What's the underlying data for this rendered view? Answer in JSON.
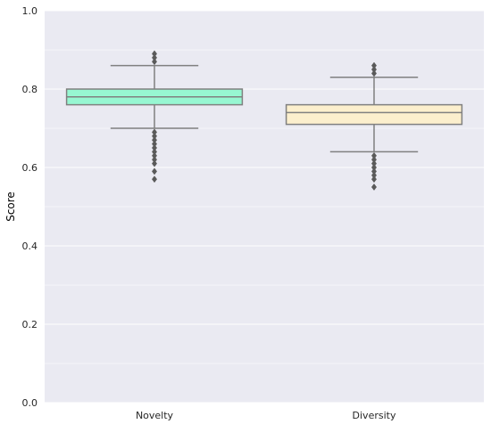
{
  "chart_data": {
    "type": "box",
    "ylabel": "Score",
    "xlabel": "",
    "title": "",
    "ylim": [
      0,
      1.0
    ],
    "yticks": [
      0.0,
      0.2,
      0.4,
      0.6,
      0.8,
      1.0
    ],
    "ytick_labels": [
      "0.0",
      "0.2",
      "0.4",
      "0.6",
      "0.8",
      "1.0"
    ],
    "categories": [
      "Novelty",
      "Diversity"
    ],
    "grid": true,
    "background": "#eaeaf2",
    "grid_color": "#ffffff",
    "box_edge_color": "#808080",
    "series": [
      {
        "category": "Novelty",
        "color": "#97f7d2",
        "q1": 0.76,
        "median": 0.78,
        "q3": 0.8,
        "whisker_low": 0.7,
        "whisker_high": 0.86,
        "outliers": [
          0.57,
          0.59,
          0.61,
          0.62,
          0.63,
          0.64,
          0.65,
          0.66,
          0.67,
          0.68,
          0.69,
          0.87,
          0.88,
          0.89
        ]
      },
      {
        "category": "Diversity",
        "color": "#fcefcd",
        "q1": 0.71,
        "median": 0.74,
        "q3": 0.76,
        "whisker_low": 0.64,
        "whisker_high": 0.83,
        "outliers": [
          0.55,
          0.57,
          0.58,
          0.59,
          0.6,
          0.61,
          0.62,
          0.63,
          0.84,
          0.85,
          0.86
        ]
      }
    ]
  }
}
